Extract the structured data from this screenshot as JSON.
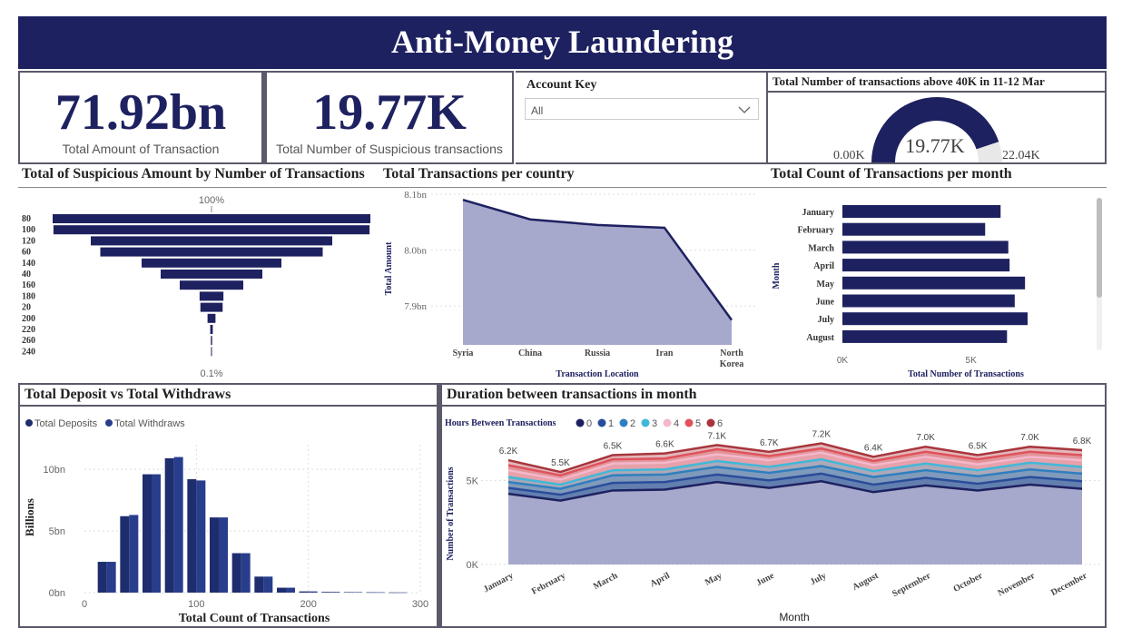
{
  "title": "Anti-Money Laundering",
  "kpis": [
    {
      "value": "71.92bn",
      "label": "Total Amount of Transaction"
    },
    {
      "value": "19.77K",
      "label": "Total Number of Suspicious transactions"
    }
  ],
  "slicer": {
    "label": "Account Key",
    "selected": "All"
  },
  "gauge": {
    "title": "Total Number of transactions above 40K in 11-12 Mar",
    "value": 19.77,
    "value_label": "19.77K",
    "min_label": "0.00K",
    "max_label": "22.04K",
    "max": 22.04
  },
  "funnel": {
    "title": "Total of Suspicious Amount by Number of Transactions",
    "top_label": "100%",
    "bottom_label": "0.1%",
    "chart_data": {
      "type": "bar",
      "categories": [
        "80",
        "100",
        "120",
        "60",
        "140",
        "40",
        "160",
        "180",
        "20",
        "200",
        "220",
        "260",
        "240"
      ],
      "values": [
        100,
        99.5,
        76,
        70,
        44,
        32,
        20,
        7.5,
        7,
        2.5,
        0.8,
        0.4,
        0.1
      ]
    }
  },
  "country": {
    "title": "Total Transactions per country",
    "chart_data": {
      "type": "area",
      "categories": [
        "Syria",
        "China",
        "Russia",
        "Iran",
        "North Korea"
      ],
      "values": [
        8.09,
        8.055,
        8.045,
        8.04,
        7.875
      ],
      "ylim": [
        7.85,
        8.1
      ],
      "yticks": [
        "8.1bn",
        "8.0bn",
        "7.9bn"
      ],
      "ytick_values": [
        8.1,
        8.0,
        7.9
      ],
      "xlabel": "Transaction Location",
      "ylabel": "Total Amount"
    }
  },
  "monthly": {
    "title": "Total Count of Transactions per month",
    "chart_data": {
      "type": "bar",
      "categories": [
        "January",
        "February",
        "March",
        "April",
        "May",
        "June",
        "July",
        "August"
      ],
      "values": [
        6150,
        5550,
        6450,
        6500,
        7100,
        6700,
        7200,
        6400
      ],
      "xlim": [
        0,
        9000
      ],
      "xticks": [
        "0K",
        "5K"
      ],
      "xtick_values": [
        0,
        5000
      ],
      "xlabel": "Total Number of Transactions",
      "ylabel": "Month"
    }
  },
  "depwith": {
    "title": "Total Deposit vs Total Withdraws",
    "chart_data": {
      "type": "bar",
      "series": [
        {
          "name": "Total Deposits",
          "color": "#1e2d6d",
          "values": [
            2.5,
            6.2,
            9.6,
            10.9,
            9.2,
            6.1,
            3.2,
            1.3,
            0.4,
            0.1,
            0.06,
            0.04,
            0.03,
            0.02
          ]
        },
        {
          "name": "Total Withdraws",
          "color": "#283e8c",
          "values": [
            2.5,
            6.3,
            9.6,
            11.0,
            9.1,
            6.1,
            3.2,
            1.3,
            0.4,
            0.1,
            0.06,
            0.04,
            0.03,
            0.02
          ]
        }
      ],
      "x": [
        20,
        40,
        60,
        80,
        100,
        120,
        140,
        160,
        180,
        200,
        220,
        240,
        260,
        280
      ],
      "xlim": [
        0,
        300
      ],
      "ylim": [
        0,
        12
      ],
      "xticks": [
        "0",
        "100",
        "200",
        "300"
      ],
      "xtick_values": [
        0,
        100,
        200,
        300
      ],
      "yticks": [
        "0bn",
        "5bn",
        "10bn"
      ],
      "ytick_values": [
        0,
        5,
        10
      ],
      "xlabel": "Total Count of Transactions",
      "ylabel": "Billions"
    }
  },
  "duration": {
    "title": "Duration between transactions in month",
    "legend_title": "Hours Between Transactions",
    "chart_data": {
      "type": "area",
      "categories": [
        "January",
        "February",
        "March",
        "April",
        "May",
        "June",
        "July",
        "August",
        "September",
        "October",
        "November",
        "December"
      ],
      "series": [
        {
          "name": "0",
          "color": "#1e2160",
          "values": [
            4200,
            3800,
            4400,
            4450,
            4900,
            4550,
            4950,
            4300,
            4700,
            4400,
            4750,
            4500
          ]
        },
        {
          "name": "1",
          "color": "#2a4d9b",
          "values": [
            4550,
            4150,
            4850,
            4900,
            5350,
            5000,
            5400,
            4750,
            5150,
            4800,
            5200,
            4950
          ]
        },
        {
          "name": "2",
          "color": "#2f7fbf",
          "values": [
            4900,
            4500,
            5300,
            5350,
            5800,
            5450,
            5850,
            5200,
            5600,
            5250,
            5650,
            5400
          ]
        },
        {
          "name": "3",
          "color": "#40b8d8",
          "values": [
            5200,
            4750,
            5600,
            5650,
            6150,
            5800,
            6250,
            5550,
            6000,
            5600,
            6050,
            5800
          ]
        },
        {
          "name": "4",
          "color": "#f4b8cc",
          "values": [
            5600,
            5050,
            6000,
            6050,
            6550,
            6200,
            6650,
            5900,
            6400,
            5950,
            6400,
            6200
          ]
        },
        {
          "name": "5",
          "color": "#e0525c",
          "values": [
            5900,
            5300,
            6250,
            6300,
            6850,
            6450,
            6900,
            6150,
            6700,
            6250,
            6700,
            6500
          ]
        },
        {
          "name": "6",
          "color": "#a8353c",
          "values": [
            6200,
            5500,
            6500,
            6600,
            7100,
            6700,
            7200,
            6400,
            7000,
            6500,
            7000,
            6800
          ]
        }
      ],
      "data_labels": [
        "6.2K",
        "5.5K",
        "6.5K",
        "6.6K",
        "7.1K",
        "6.7K",
        "7.2K",
        "6.4K",
        "7.0K",
        "6.5K",
        "7.0K",
        "6.8K"
      ],
      "ylim": [
        0,
        8200
      ],
      "yticks": [
        "0K",
        "5K"
      ],
      "ytick_values": [
        0,
        5000
      ],
      "xlabel": "Month",
      "ylabel": "Number of Transactions"
    }
  }
}
